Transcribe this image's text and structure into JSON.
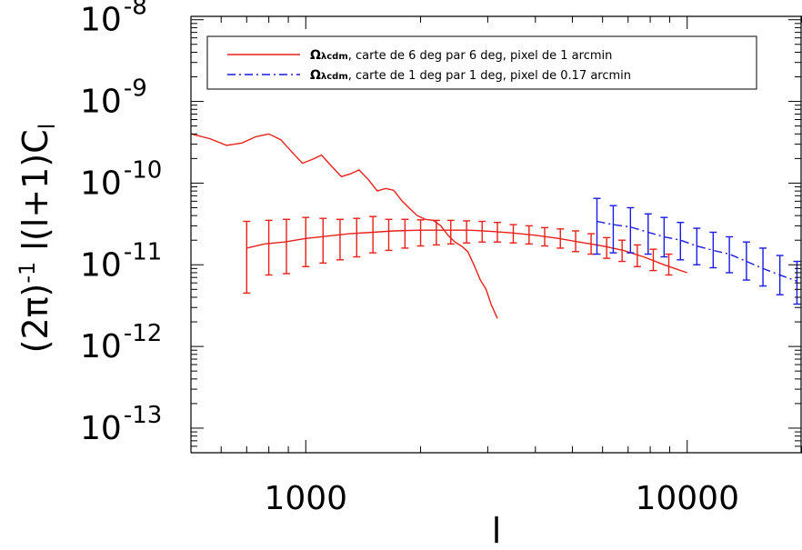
{
  "chart_data": {
    "type": "line",
    "xscale": "log",
    "yscale": "log",
    "xlim": [
      500,
      20000
    ],
    "ylim": [
      5e-14,
      1.1e-08
    ],
    "xlabel": "l",
    "ylabel_parts": {
      "prefix": "(2",
      "pi": "π",
      "exp_group": ")",
      "exp": "-1",
      "rest": " l(l+1)C",
      "sub": "l"
    },
    "x_ticks": [
      {
        "value": 1000,
        "label": "1000"
      },
      {
        "value": 10000,
        "label": "10000"
      }
    ],
    "y_ticks": [
      {
        "value": 1e-13,
        "base": "10",
        "exp": "-13"
      },
      {
        "value": 1e-12,
        "base": "10",
        "exp": "-12"
      },
      {
        "value": 1e-11,
        "base": "10",
        "exp": "-11"
      },
      {
        "value": 1e-10,
        "base": "10",
        "exp": "-10"
      },
      {
        "value": 1e-09,
        "base": "10",
        "exp": "-9"
      },
      {
        "value": 1e-08,
        "base": "10",
        "exp": "-8"
      }
    ],
    "legend": {
      "position": "top",
      "entries": [
        {
          "symbol": "Ω",
          "sub": "λcdm",
          "text": ", carte de 6 deg par 6 deg, pixel de 1 arcmin",
          "color": "#e8201a",
          "dash": "solid"
        },
        {
          "symbol": "Ω",
          "sub": "λcdm",
          "text": ", carte de 1 deg par 1 deg, pixel de 0.17 arcmin",
          "color": "#1a1ae0",
          "dash": "dashdot"
        }
      ]
    },
    "series": [
      {
        "color": "#e8201a",
        "style": "solid",
        "points": [
          [
            500,
            4e-10
          ],
          [
            560,
            3.5e-10
          ],
          [
            620,
            2.9e-10
          ],
          [
            680,
            3.1e-10
          ],
          [
            740,
            3.7e-10
          ],
          [
            800,
            4e-10
          ],
          [
            860,
            3.4e-10
          ],
          [
            920,
            2.4e-10
          ],
          [
            980,
            1.75e-10
          ],
          [
            1040,
            1.95e-10
          ],
          [
            1100,
            2.2e-10
          ],
          [
            1170,
            1.6e-10
          ],
          [
            1240,
            1.2e-10
          ],
          [
            1310,
            1.3e-10
          ],
          [
            1380,
            1.45e-10
          ],
          [
            1460,
            1.1e-10
          ],
          [
            1540,
            8e-11
          ],
          [
            1620,
            8.6e-11
          ],
          [
            1700,
            8.2e-11
          ],
          [
            1790,
            6e-11
          ],
          [
            1880,
            4.8e-11
          ],
          [
            1960,
            4e-11
          ],
          [
            2060,
            3.6e-11
          ],
          [
            2160,
            3.5e-11
          ],
          [
            2260,
            3e-11
          ],
          [
            2360,
            2.3e-11
          ],
          [
            2460,
            1.9e-11
          ],
          [
            2560,
            1.7e-11
          ],
          [
            2660,
            1.45e-11
          ],
          [
            2760,
            1e-11
          ],
          [
            2870,
            6.5e-12
          ],
          [
            2970,
            5e-12
          ],
          [
            3060,
            3.3e-12
          ],
          [
            3180,
            2.2e-12
          ]
        ]
      },
      {
        "color": "#e8201a",
        "style": "solid",
        "points": [
          [
            700,
            1.6e-11
          ],
          [
            780,
            1.8e-11
          ],
          [
            880,
            1.9e-11
          ],
          [
            1000,
            2.1e-11
          ],
          [
            1150,
            2.25e-11
          ],
          [
            1300,
            2.4e-11
          ],
          [
            1500,
            2.5e-11
          ],
          [
            1700,
            2.6e-11
          ],
          [
            2000,
            2.65e-11
          ],
          [
            2300,
            2.65e-11
          ],
          [
            2700,
            2.65e-11
          ],
          [
            3100,
            2.55e-11
          ],
          [
            3500,
            2.45e-11
          ],
          [
            4000,
            2.3e-11
          ],
          [
            4600,
            2.1e-11
          ],
          [
            5200,
            1.9e-11
          ],
          [
            6000,
            1.7e-11
          ],
          [
            6800,
            1.5e-11
          ],
          [
            7700,
            1.25e-11
          ],
          [
            8700,
            1e-11
          ],
          [
            10000,
            8e-12
          ]
        ],
        "errorbars": [
          [
            700,
            1.6e-11,
            4.5e-12,
            3.4e-11
          ],
          [
            800,
            1.8e-11,
            7.5e-12,
            3.5e-11
          ],
          [
            890,
            1.9e-11,
            7.8e-12,
            3.6e-11
          ],
          [
            1000,
            2.1e-11,
            9.5e-12,
            3.8e-11
          ],
          [
            1110,
            2.15e-11,
            1.05e-11,
            3.7e-11
          ],
          [
            1230,
            2.3e-11,
            1.15e-11,
            3.6e-11
          ],
          [
            1360,
            2.4e-11,
            1.25e-11,
            3.7e-11
          ],
          [
            1500,
            2.5e-11,
            1.4e-11,
            3.9e-11
          ],
          [
            1650,
            2.55e-11,
            1.5e-11,
            3.6e-11
          ],
          [
            1820,
            2.6e-11,
            1.6e-11,
            3.6e-11
          ],
          [
            2000,
            2.6e-11,
            1.7e-11,
            3.55e-11
          ],
          [
            2200,
            2.65e-11,
            1.75e-11,
            3.5e-11
          ],
          [
            2400,
            2.65e-11,
            1.8e-11,
            3.5e-11
          ],
          [
            2640,
            2.65e-11,
            1.85e-11,
            3.45e-11
          ],
          [
            2900,
            2.6e-11,
            1.9e-11,
            3.4e-11
          ],
          [
            3180,
            2.55e-11,
            1.9e-11,
            3.3e-11
          ],
          [
            3500,
            2.45e-11,
            1.85e-11,
            3.1e-11
          ],
          [
            3850,
            2.35e-11,
            1.8e-11,
            3e-11
          ],
          [
            4230,
            2.25e-11,
            1.7e-11,
            2.85e-11
          ],
          [
            4650,
            2.1e-11,
            1.6e-11,
            2.75e-11
          ],
          [
            5100,
            1.95e-11,
            1.45e-11,
            2.6e-11
          ],
          [
            5600,
            1.8e-11,
            1.35e-11,
            2.4e-11
          ],
          [
            6150,
            1.65e-11,
            1.2e-11,
            2.15e-11
          ],
          [
            6750,
            1.5e-11,
            1.1e-11,
            2e-11
          ],
          [
            7400,
            1.3e-11,
            9.5e-12,
            1.75e-11
          ],
          [
            8150,
            1.15e-11,
            8.5e-12,
            1.55e-11
          ],
          [
            8950,
            1e-11,
            7.5e-12,
            1.35e-11
          ]
        ]
      },
      {
        "color": "#1a1ae0",
        "style": "dashdot",
        "points": [
          [
            5800,
            3.4e-11
          ],
          [
            6400,
            3.1e-11
          ],
          [
            7100,
            2.9e-11
          ],
          [
            7900,
            2.5e-11
          ],
          [
            8700,
            2.2e-11
          ],
          [
            9600,
            2e-11
          ],
          [
            10600,
            1.7e-11
          ],
          [
            11700,
            1.5e-11
          ],
          [
            12900,
            1.35e-11
          ],
          [
            14300,
            1.1e-11
          ],
          [
            15800,
            9e-12
          ],
          [
            17500,
            7.5e-12
          ],
          [
            19400,
            6.3e-12
          ]
        ],
        "errorbars": [
          [
            5800,
            3.4e-11,
            1.35e-11,
            6.5e-11
          ],
          [
            6400,
            3.1e-11,
            1.4e-11,
            5.3e-11
          ],
          [
            7100,
            2.9e-11,
            1.4e-11,
            5e-11
          ],
          [
            7900,
            2.5e-11,
            1.35e-11,
            4.2e-11
          ],
          [
            8700,
            2.2e-11,
            1.25e-11,
            3.8e-11
          ],
          [
            9600,
            2e-11,
            1.15e-11,
            3.3e-11
          ],
          [
            10600,
            1.7e-11,
            1e-11,
            2.8e-11
          ],
          [
            11700,
            1.5e-11,
            9.2e-12,
            2.5e-11
          ],
          [
            12900,
            1.35e-11,
            8e-12,
            2.2e-11
          ],
          [
            14300,
            1.1e-11,
            6.5e-12,
            1.9e-11
          ],
          [
            15800,
            9e-12,
            5.5e-12,
            1.6e-11
          ],
          [
            17500,
            7.5e-12,
            4.3e-12,
            1.3e-11
          ],
          [
            19400,
            6.3e-12,
            3.3e-12,
            1.1e-11
          ]
        ]
      }
    ]
  }
}
